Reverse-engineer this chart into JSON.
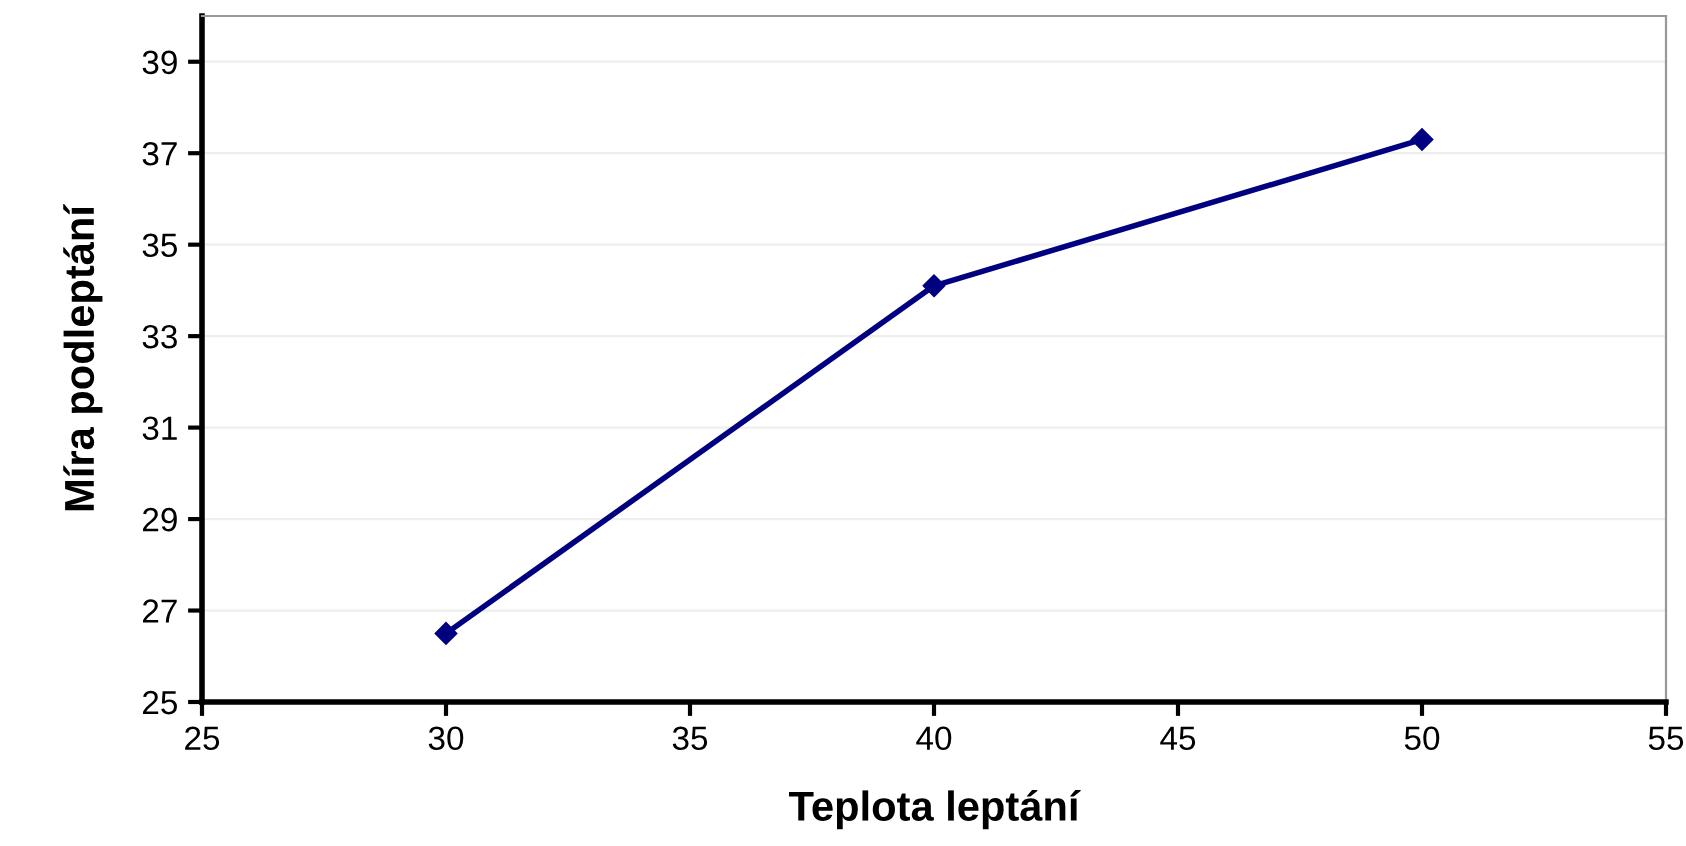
{
  "chart_data": {
    "type": "line",
    "xlabel": "Teplota leptání",
    "ylabel": "Míra podleptání",
    "x": [
      30,
      40,
      50
    ],
    "series": [
      {
        "color": "#000080",
        "values": [
          26.5,
          34.1,
          37.3
        ]
      }
    ],
    "xlim": [
      25,
      55
    ],
    "xticks": [
      25,
      30,
      35,
      40,
      45,
      50,
      55
    ],
    "ylim": [
      25,
      40
    ],
    "yticks": [
      25,
      27,
      29,
      31,
      33,
      35,
      37,
      39
    ],
    "grid": "y",
    "marker": "diamond",
    "line_style": "solid"
  }
}
